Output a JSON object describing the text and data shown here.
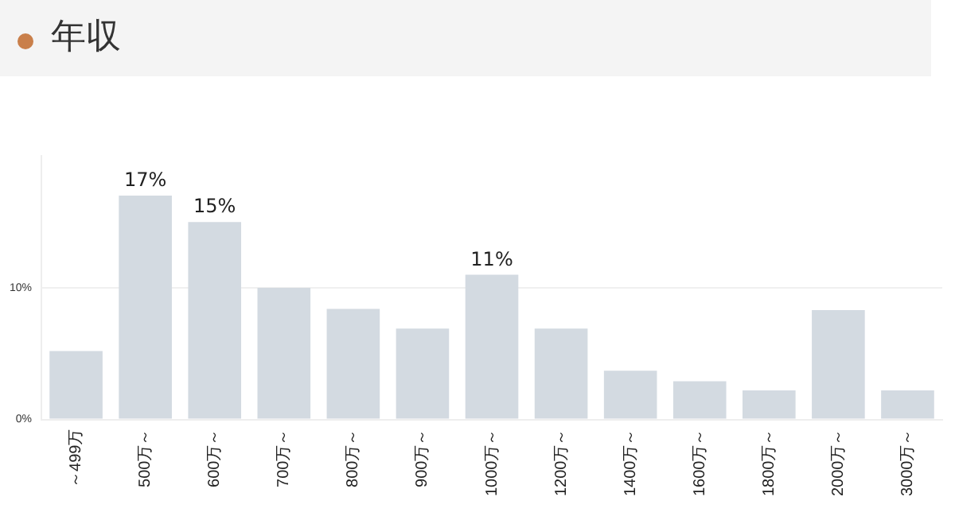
{
  "chart_data": {
    "type": "bar",
    "title": "年収",
    "categories": [
      "～499万",
      "500万～",
      "600万～",
      "700万～",
      "800万～",
      "900万～",
      "1000万～",
      "1200万～",
      "1400万～",
      "1600万～",
      "1800万～",
      "2000万～",
      "3000万～"
    ],
    "values": [
      5.2,
      17,
      15,
      10,
      8.4,
      6.9,
      11,
      6.9,
      3.7,
      2.9,
      2.2,
      8.3,
      2.2
    ],
    "value_labels": [
      null,
      "17%",
      "15%",
      null,
      null,
      null,
      "11%",
      null,
      null,
      null,
      null,
      null,
      null
    ],
    "color": "#d3dae1",
    "ylim": [
      0,
      20
    ],
    "yticks": [
      {
        "value": 0,
        "label": "0%"
      },
      {
        "value": 10,
        "label": "10%"
      }
    ],
    "grid": "y"
  }
}
